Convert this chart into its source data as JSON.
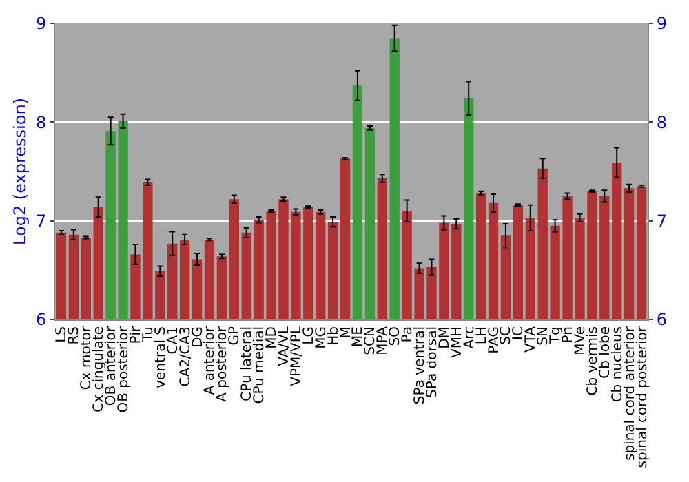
{
  "chart_data": {
    "type": "bar",
    "ylabel": "Log2 (expression)",
    "categories": [
      "LS",
      "RS",
      "Cx motor",
      "Cx cingulate",
      "OB anterior",
      "OB posterior",
      "Pir",
      "Tu",
      "ventral S",
      "CA1",
      "CA2/CA3",
      "DG",
      "A anterior",
      "A posterior",
      "GP",
      "CPu lateral",
      "CPu medial",
      "MD",
      "VA/VL",
      "VPM/VPL",
      "LG",
      "MG",
      "Hb",
      "M",
      "ME",
      "SCN",
      "MPA",
      "SO",
      "Pa",
      "SPa ventral",
      "SPa dorsal",
      "DM",
      "VMH",
      "Arc",
      "LH",
      "PAG",
      "SC",
      "IC",
      "VTA",
      "SN",
      "Tg",
      "Pn",
      "MVe",
      "Cb vermis",
      "Cb lobe",
      "Cb nucleus",
      "spinal cord anterior",
      "spinal cord posterior"
    ],
    "values": [
      6.88,
      6.86,
      6.83,
      7.14,
      7.91,
      8.01,
      6.66,
      7.39,
      6.49,
      6.77,
      6.81,
      6.61,
      6.81,
      6.64,
      7.22,
      6.88,
      7.01,
      7.1,
      7.22,
      7.09,
      7.14,
      7.09,
      6.99,
      7.63,
      8.37,
      7.94,
      7.43,
      8.85,
      7.1,
      6.52,
      6.53,
      6.98,
      6.97,
      8.24,
      7.28,
      7.18,
      6.85,
      7.16,
      7.03,
      7.53,
      6.95,
      7.25,
      7.03,
      7.3,
      7.25,
      7.59,
      7.33,
      7.35
    ],
    "errors": [
      0.02,
      0.05,
      0.01,
      0.1,
      0.14,
      0.07,
      0.1,
      0.03,
      0.05,
      0.12,
      0.05,
      0.06,
      0.01,
      0.02,
      0.04,
      0.05,
      0.03,
      0.01,
      0.02,
      0.03,
      0.01,
      0.02,
      0.05,
      0.01,
      0.15,
      0.02,
      0.04,
      0.13,
      0.11,
      0.05,
      0.08,
      0.07,
      0.05,
      0.17,
      0.02,
      0.09,
      0.12,
      0.01,
      0.13,
      0.1,
      0.06,
      0.03,
      0.04,
      0.01,
      0.06,
      0.15,
      0.04,
      0.01
    ],
    "colors": [
      "#b03232",
      "#b03232",
      "#b03232",
      "#b03232",
      "#3c9e3c",
      "#3c9e3c",
      "#b03232",
      "#b03232",
      "#b03232",
      "#b03232",
      "#b03232",
      "#b03232",
      "#b03232",
      "#b03232",
      "#b03232",
      "#b03232",
      "#b03232",
      "#b03232",
      "#b03232",
      "#b03232",
      "#b03232",
      "#b03232",
      "#b03232",
      "#b03232",
      "#3c9e3c",
      "#3c9e3c",
      "#b03232",
      "#3c9e3c",
      "#b03232",
      "#b03232",
      "#b03232",
      "#b03232",
      "#b03232",
      "#3c9e3c",
      "#b03232",
      "#b03232",
      "#b03232",
      "#b03232",
      "#b03232",
      "#b03232",
      "#b03232",
      "#b03232",
      "#b03232",
      "#b03232",
      "#b03232",
      "#b03232",
      "#b03232",
      "#b03232"
    ],
    "ylim": [
      6,
      9
    ],
    "yticks": [
      6,
      7,
      8,
      9
    ],
    "y2lim": [
      6,
      9
    ],
    "y2ticks": [
      6,
      7,
      8,
      9
    ],
    "grid": "y"
  }
}
